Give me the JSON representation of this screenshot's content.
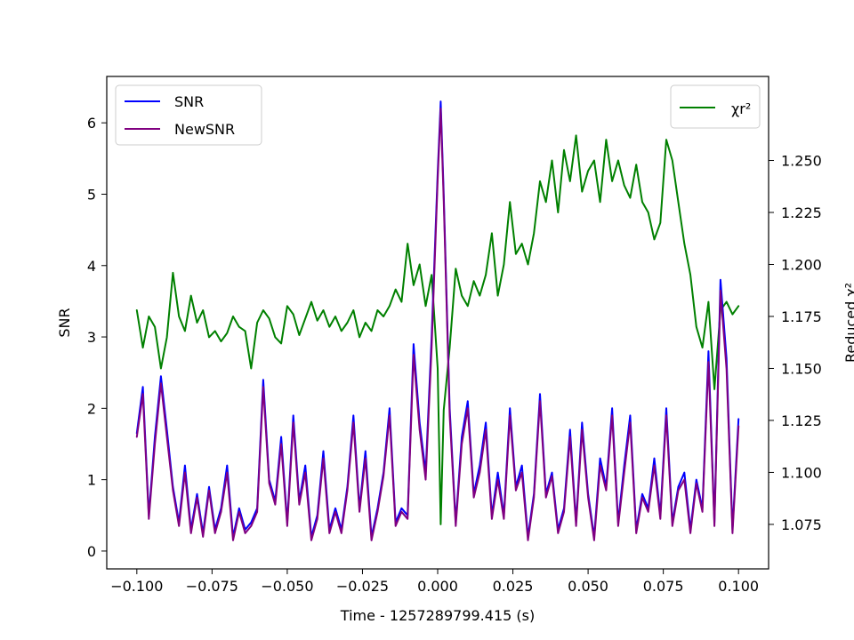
{
  "chart_data": {
    "type": "line",
    "xlabel": "Time - 1257289799.415 (s)",
    "ylabel_left": "SNR",
    "ylabel_right": "Reduced χ²",
    "xlim": [
      -0.11,
      0.11
    ],
    "ylim_left": [
      -0.25,
      6.65
    ],
    "ylim_right": [
      1.0536,
      1.2904
    ],
    "x_ticks": [
      -0.1,
      -0.075,
      -0.05,
      -0.025,
      0.0,
      0.025,
      0.05,
      0.075,
      0.1
    ],
    "x_tick_labels": [
      "−0.100",
      "−0.075",
      "−0.050",
      "−0.025",
      "0.000",
      "0.025",
      "0.050",
      "0.075",
      "0.100"
    ],
    "y_left_ticks": [
      0,
      1,
      2,
      3,
      4,
      5,
      6
    ],
    "y_left_tick_labels": [
      "0",
      "1",
      "2",
      "3",
      "4",
      "5",
      "6"
    ],
    "y_right_ticks": [
      1.075,
      1.1,
      1.125,
      1.15,
      1.175,
      1.2,
      1.225,
      1.25
    ],
    "y_right_tick_labels": [
      "1.075",
      "1.100",
      "1.125",
      "1.150",
      "1.175",
      "1.200",
      "1.225",
      "1.250"
    ],
    "grid": false,
    "legend_left": {
      "placement": "upper-left",
      "entries": [
        "SNR",
        "NewSNR"
      ]
    },
    "legend_right": {
      "placement": "upper-right",
      "entries": [
        "χr²"
      ]
    },
    "series": [
      {
        "name": "SNR",
        "axis": "left",
        "color": "#0000ff",
        "x": [
          -0.1,
          -0.098,
          -0.096,
          -0.094,
          -0.092,
          -0.09,
          -0.088,
          -0.086,
          -0.084,
          -0.082,
          -0.08,
          -0.078,
          -0.076,
          -0.074,
          -0.072,
          -0.07,
          -0.068,
          -0.066,
          -0.064,
          -0.062,
          -0.06,
          -0.058,
          -0.056,
          -0.054,
          -0.052,
          -0.05,
          -0.048,
          -0.046,
          -0.044,
          -0.042,
          -0.04,
          -0.038,
          -0.036,
          -0.034,
          -0.032,
          -0.03,
          -0.028,
          -0.026,
          -0.024,
          -0.022,
          -0.02,
          -0.018,
          -0.016,
          -0.014,
          -0.012,
          -0.01,
          -0.008,
          -0.006,
          -0.004,
          -0.002,
          0.0,
          0.001,
          0.002,
          0.004,
          0.006,
          0.008,
          0.01,
          0.012,
          0.014,
          0.016,
          0.018,
          0.02,
          0.022,
          0.024,
          0.026,
          0.028,
          0.03,
          0.032,
          0.034,
          0.036,
          0.038,
          0.04,
          0.042,
          0.044,
          0.046,
          0.048,
          0.05,
          0.052,
          0.054,
          0.056,
          0.058,
          0.06,
          0.062,
          0.064,
          0.066,
          0.068,
          0.07,
          0.072,
          0.074,
          0.076,
          0.078,
          0.08,
          0.082,
          0.084,
          0.086,
          0.088,
          0.09,
          0.092,
          0.094,
          0.096,
          0.098,
          0.1
        ],
        "y": [
          1.65,
          2.3,
          0.5,
          1.6,
          2.45,
          1.7,
          0.9,
          0.4,
          1.2,
          0.3,
          0.8,
          0.25,
          0.9,
          0.3,
          0.6,
          1.2,
          0.2,
          0.6,
          0.3,
          0.4,
          0.6,
          2.4,
          1.0,
          0.7,
          1.6,
          0.4,
          1.9,
          0.7,
          1.2,
          0.2,
          0.5,
          1.4,
          0.3,
          0.6,
          0.3,
          0.9,
          1.9,
          0.6,
          1.4,
          0.2,
          0.6,
          1.1,
          2.0,
          0.4,
          0.6,
          0.5,
          2.9,
          1.8,
          1.1,
          3.0,
          5.3,
          6.3,
          5.0,
          2.0,
          0.4,
          1.6,
          2.1,
          0.8,
          1.2,
          1.8,
          0.5,
          1.1,
          0.5,
          2.0,
          0.9,
          1.2,
          0.2,
          0.8,
          2.2,
          0.8,
          1.1,
          0.3,
          0.6,
          1.7,
          0.4,
          1.8,
          0.8,
          0.2,
          1.3,
          0.9,
          2.0,
          0.4,
          1.2,
          1.9,
          0.3,
          0.8,
          0.6,
          1.3,
          0.5,
          2.0,
          0.4,
          0.9,
          1.1,
          0.3,
          1.0,
          0.6,
          2.8,
          0.4,
          3.8,
          2.7,
          0.3,
          1.85
        ]
      },
      {
        "name": "NewSNR",
        "axis": "left",
        "color": "#800080",
        "x": [
          -0.1,
          -0.098,
          -0.096,
          -0.094,
          -0.092,
          -0.09,
          -0.088,
          -0.086,
          -0.084,
          -0.082,
          -0.08,
          -0.078,
          -0.076,
          -0.074,
          -0.072,
          -0.07,
          -0.068,
          -0.066,
          -0.064,
          -0.062,
          -0.06,
          -0.058,
          -0.056,
          -0.054,
          -0.052,
          -0.05,
          -0.048,
          -0.046,
          -0.044,
          -0.042,
          -0.04,
          -0.038,
          -0.036,
          -0.034,
          -0.032,
          -0.03,
          -0.028,
          -0.026,
          -0.024,
          -0.022,
          -0.02,
          -0.018,
          -0.016,
          -0.014,
          -0.012,
          -0.01,
          -0.008,
          -0.006,
          -0.004,
          -0.002,
          0.0,
          0.001,
          0.002,
          0.004,
          0.006,
          0.008,
          0.01,
          0.012,
          0.014,
          0.016,
          0.018,
          0.02,
          0.022,
          0.024,
          0.026,
          0.028,
          0.03,
          0.032,
          0.034,
          0.036,
          0.038,
          0.04,
          0.042,
          0.044,
          0.046,
          0.048,
          0.05,
          0.052,
          0.054,
          0.056,
          0.058,
          0.06,
          0.062,
          0.064,
          0.066,
          0.068,
          0.07,
          0.072,
          0.074,
          0.076,
          0.078,
          0.08,
          0.082,
          0.084,
          0.086,
          0.088,
          0.09,
          0.092,
          0.094,
          0.096,
          0.098,
          0.1
        ],
        "y": [
          1.6,
          2.2,
          0.45,
          1.5,
          2.35,
          1.6,
          0.85,
          0.35,
          1.1,
          0.25,
          0.75,
          0.2,
          0.85,
          0.25,
          0.55,
          1.1,
          0.15,
          0.55,
          0.25,
          0.35,
          0.55,
          2.3,
          0.95,
          0.65,
          1.5,
          0.35,
          1.8,
          0.65,
          1.1,
          0.15,
          0.45,
          1.3,
          0.25,
          0.55,
          0.25,
          0.85,
          1.8,
          0.55,
          1.3,
          0.15,
          0.55,
          1.05,
          1.9,
          0.35,
          0.55,
          0.45,
          2.75,
          1.7,
          1.0,
          2.85,
          5.2,
          6.2,
          4.9,
          1.9,
          0.35,
          1.5,
          2.0,
          0.75,
          1.1,
          1.7,
          0.45,
          1.0,
          0.45,
          1.9,
          0.85,
          1.1,
          0.15,
          0.75,
          2.1,
          0.75,
          1.05,
          0.25,
          0.55,
          1.6,
          0.35,
          1.7,
          0.75,
          0.15,
          1.2,
          0.85,
          1.9,
          0.35,
          1.1,
          1.8,
          0.25,
          0.75,
          0.55,
          1.2,
          0.45,
          1.9,
          0.35,
          0.85,
          1.0,
          0.25,
          0.95,
          0.55,
          2.65,
          0.35,
          3.65,
          2.55,
          0.25,
          1.75
        ]
      },
      {
        "name": "χr²",
        "axis": "right",
        "color": "#008000",
        "x": [
          -0.1,
          -0.098,
          -0.096,
          -0.094,
          -0.092,
          -0.09,
          -0.088,
          -0.086,
          -0.084,
          -0.082,
          -0.08,
          -0.078,
          -0.076,
          -0.074,
          -0.072,
          -0.07,
          -0.068,
          -0.066,
          -0.064,
          -0.062,
          -0.06,
          -0.058,
          -0.056,
          -0.054,
          -0.052,
          -0.05,
          -0.048,
          -0.046,
          -0.044,
          -0.042,
          -0.04,
          -0.038,
          -0.036,
          -0.034,
          -0.032,
          -0.03,
          -0.028,
          -0.026,
          -0.024,
          -0.022,
          -0.02,
          -0.018,
          -0.016,
          -0.014,
          -0.012,
          -0.01,
          -0.008,
          -0.006,
          -0.004,
          -0.002,
          0.0,
          0.001,
          0.002,
          0.004,
          0.006,
          0.008,
          0.01,
          0.012,
          0.014,
          0.016,
          0.018,
          0.02,
          0.022,
          0.024,
          0.026,
          0.028,
          0.03,
          0.032,
          0.034,
          0.036,
          0.038,
          0.04,
          0.042,
          0.044,
          0.046,
          0.048,
          0.05,
          0.052,
          0.054,
          0.056,
          0.058,
          0.06,
          0.062,
          0.064,
          0.066,
          0.068,
          0.07,
          0.072,
          0.074,
          0.076,
          0.078,
          0.08,
          0.082,
          0.084,
          0.086,
          0.088,
          0.09,
          0.092,
          0.094,
          0.096,
          0.098,
          0.1
        ],
        "y": [
          1.178,
          1.16,
          1.175,
          1.17,
          1.15,
          1.165,
          1.196,
          1.175,
          1.168,
          1.185,
          1.172,
          1.178,
          1.165,
          1.168,
          1.163,
          1.167,
          1.175,
          1.17,
          1.168,
          1.15,
          1.172,
          1.178,
          1.174,
          1.165,
          1.162,
          1.18,
          1.176,
          1.166,
          1.174,
          1.182,
          1.173,
          1.178,
          1.17,
          1.175,
          1.168,
          1.172,
          1.178,
          1.165,
          1.172,
          1.168,
          1.178,
          1.175,
          1.18,
          1.188,
          1.182,
          1.21,
          1.19,
          1.2,
          1.18,
          1.195,
          1.15,
          1.075,
          1.13,
          1.16,
          1.198,
          1.185,
          1.18,
          1.192,
          1.185,
          1.195,
          1.215,
          1.185,
          1.2,
          1.23,
          1.205,
          1.21,
          1.2,
          1.215,
          1.24,
          1.23,
          1.25,
          1.225,
          1.255,
          1.24,
          1.262,
          1.235,
          1.245,
          1.25,
          1.23,
          1.26,
          1.24,
          1.25,
          1.238,
          1.232,
          1.248,
          1.23,
          1.225,
          1.212,
          1.22,
          1.26,
          1.25,
          1.23,
          1.21,
          1.195,
          1.17,
          1.16,
          1.182,
          1.14,
          1.178,
          1.182,
          1.176,
          1.18
        ]
      }
    ]
  }
}
